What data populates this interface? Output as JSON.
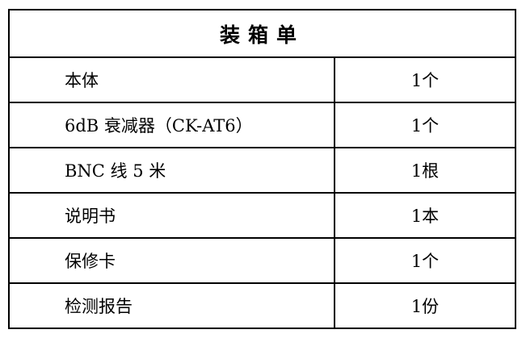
{
  "title": "装箱单",
  "rows": [
    {
      "item": "本体",
      "qty": "1个"
    },
    {
      "item": "6dB 衰减器（CK-AT6）",
      "qty": "1个"
    },
    {
      "item": "BNC 线 5 米",
      "qty": "1根"
    },
    {
      "item": "说明书",
      "qty": "1本"
    },
    {
      "item": "保修卡",
      "qty": "1个"
    },
    {
      "item": "检测报告",
      "qty": "1份"
    }
  ]
}
